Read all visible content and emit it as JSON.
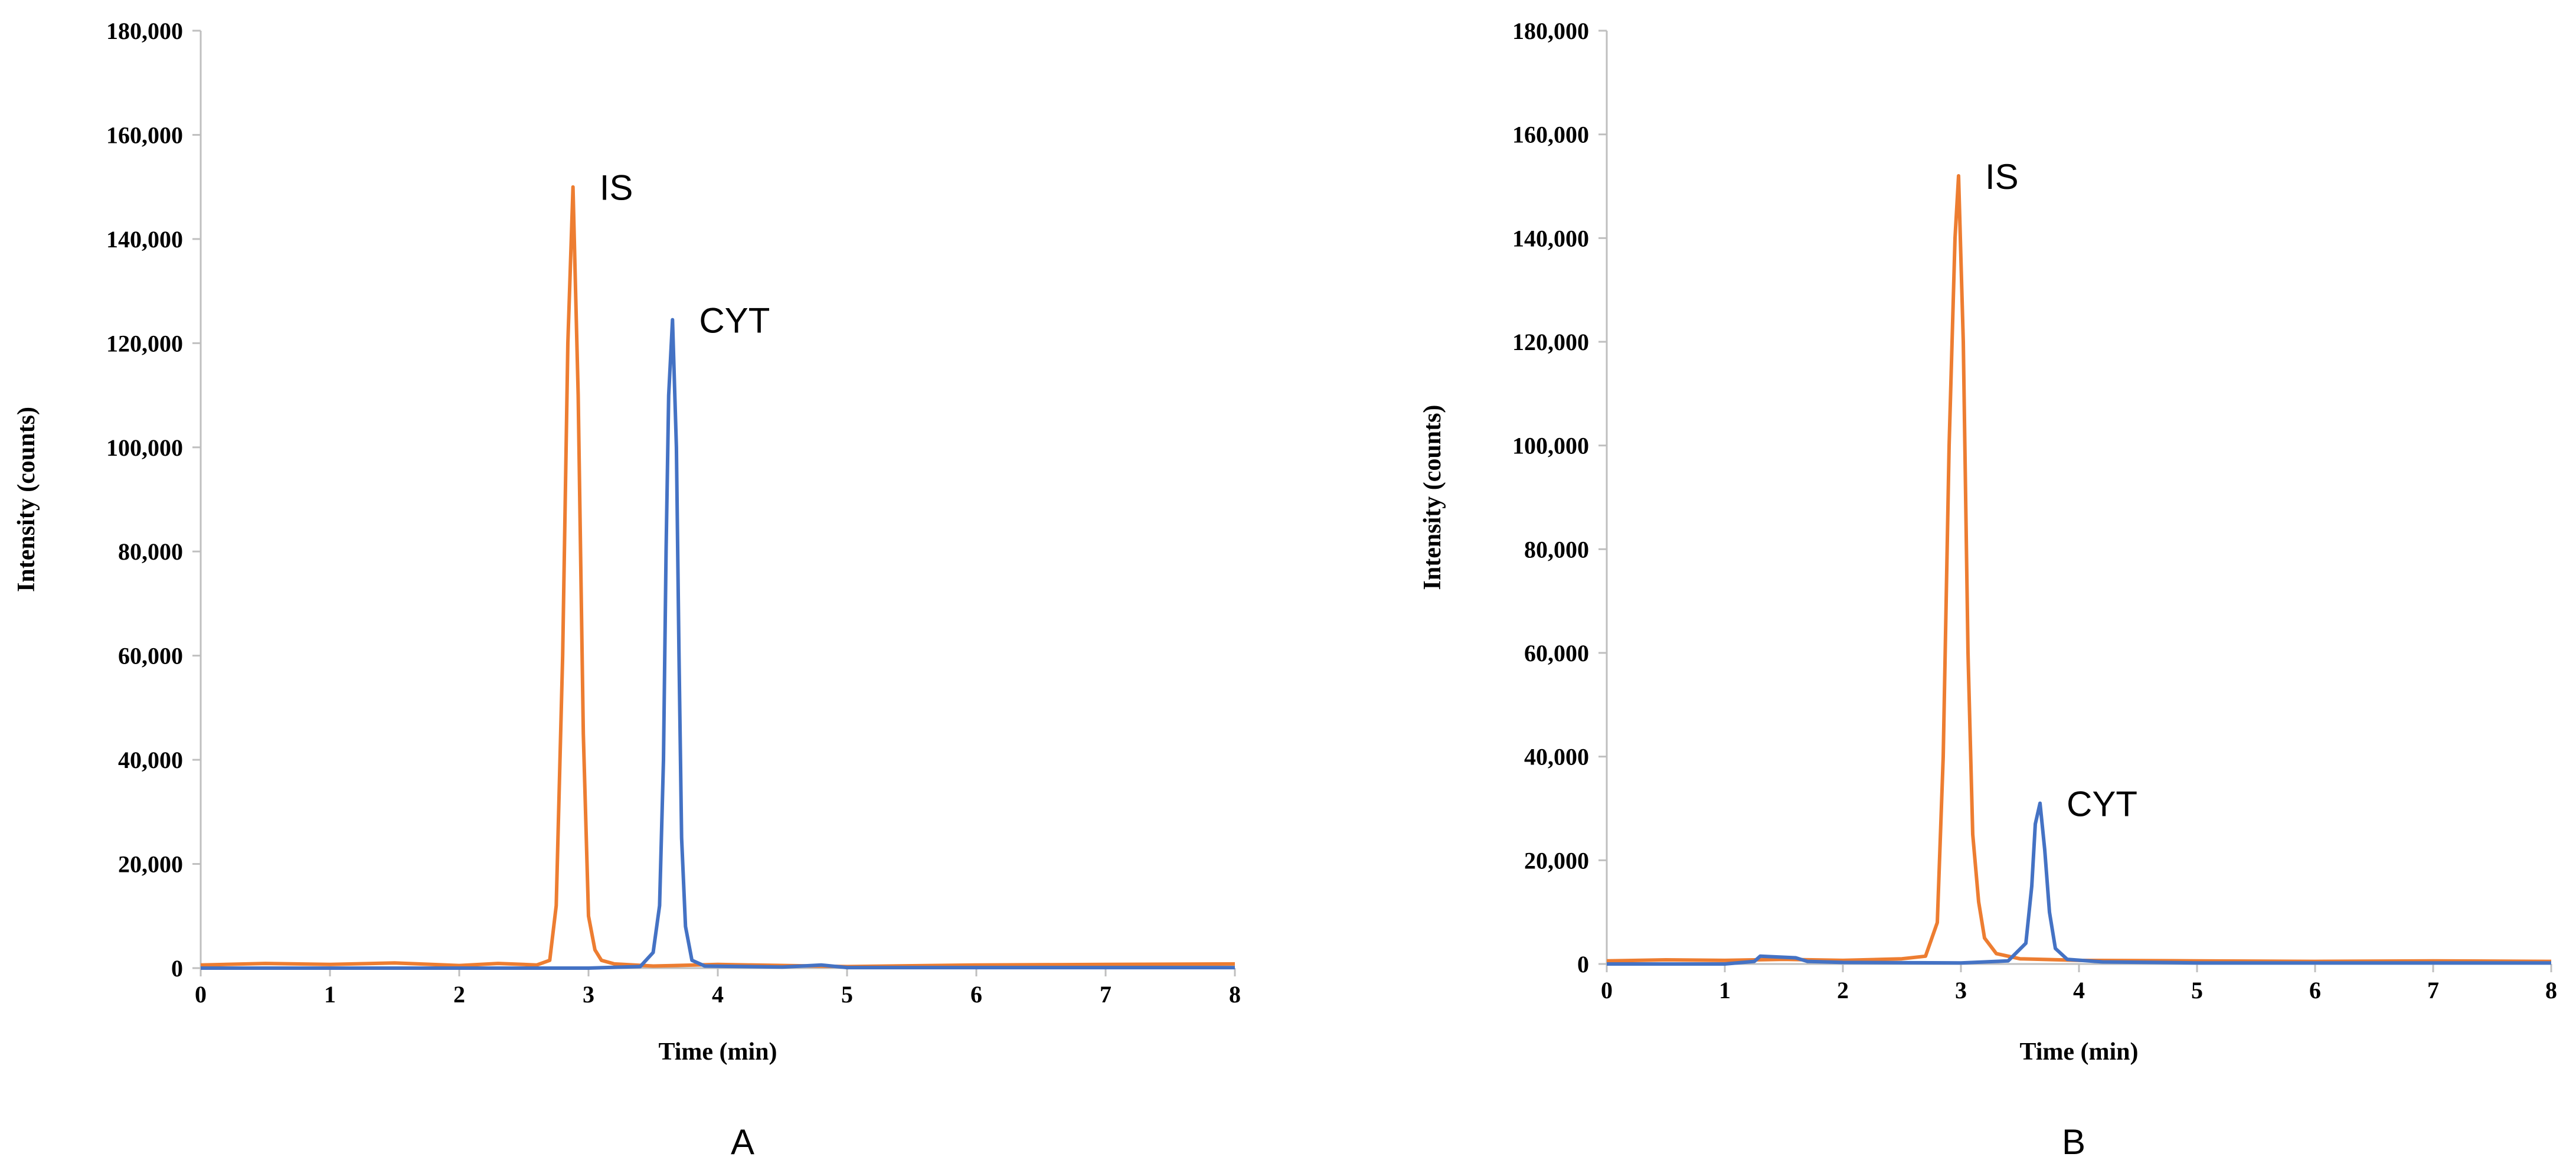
{
  "colors": {
    "IS": "#ED7D31",
    "CYT": "#4472C4",
    "axis": "#BFBFBF"
  },
  "chart_data": [
    {
      "type": "line",
      "panel_label": "A",
      "xlabel": "Time (min)",
      "ylabel": "Intensity (counts)",
      "xlim": [
        0,
        8
      ],
      "ylim": [
        0,
        180000
      ],
      "xticks": [
        0,
        1,
        2,
        3,
        4,
        5,
        6,
        7,
        8
      ],
      "yticks": [
        0,
        20000,
        40000,
        60000,
        80000,
        100000,
        120000,
        140000,
        160000,
        180000
      ],
      "ytick_labels": [
        "0",
        "20,000",
        "40,000",
        "60,000",
        "80,000",
        "100,000",
        "120,000",
        "140,000",
        "160,000",
        "180,000"
      ],
      "grid": false,
      "annotations": [
        {
          "text": "IS",
          "x": 2.88,
          "y": 150000
        },
        {
          "text": "CYT",
          "x": 3.65,
          "y": 124500
        }
      ],
      "series": [
        {
          "name": "IS",
          "color": "#ED7D31",
          "x": [
            0,
            0.5,
            1,
            1.5,
            2,
            2.3,
            2.6,
            2.7,
            2.75,
            2.8,
            2.84,
            2.88,
            2.92,
            2.96,
            3.0,
            3.05,
            3.1,
            3.2,
            3.5,
            4,
            5,
            6,
            7,
            8
          ],
          "y": [
            600,
            900,
            700,
            1000,
            500,
            900,
            600,
            1500,
            12000,
            60000,
            120000,
            150000,
            110000,
            45000,
            10000,
            3500,
            1500,
            800,
            400,
            700,
            300,
            600,
            700,
            800
          ]
        },
        {
          "name": "CYT",
          "color": "#4472C4",
          "x": [
            0,
            1,
            2,
            3,
            3.4,
            3.5,
            3.55,
            3.58,
            3.6,
            3.62,
            3.65,
            3.68,
            3.7,
            3.72,
            3.75,
            3.8,
            3.9,
            4.5,
            4.8,
            5,
            6,
            7,
            8
          ],
          "y": [
            0,
            0,
            0,
            0,
            300,
            3000,
            12000,
            40000,
            80000,
            110000,
            124500,
            100000,
            60000,
            25000,
            8000,
            1500,
            400,
            200,
            600,
            100,
            100,
            100,
            100
          ]
        }
      ]
    },
    {
      "type": "line",
      "panel_label": "B",
      "xlabel": "Time (min)",
      "ylabel": "Intensity (counts)",
      "xlim": [
        0,
        8
      ],
      "ylim": [
        0,
        180000
      ],
      "xticks": [
        0,
        1,
        2,
        3,
        4,
        5,
        6,
        7,
        8
      ],
      "yticks": [
        0,
        20000,
        40000,
        60000,
        80000,
        100000,
        120000,
        140000,
        160000,
        180000
      ],
      "ytick_labels": [
        "0",
        "20,000",
        "40,000",
        "60,000",
        "80,000",
        "100,000",
        "120,000",
        "140,000",
        "160,000",
        "180,000"
      ],
      "grid": false,
      "annotations": [
        {
          "text": "IS",
          "x": 2.98,
          "y": 152000
        },
        {
          "text": "CYT",
          "x": 3.67,
          "y": 31000
        }
      ],
      "series": [
        {
          "name": "IS",
          "color": "#ED7D31",
          "x": [
            0,
            0.5,
            1,
            1.5,
            2,
            2.5,
            2.7,
            2.8,
            2.85,
            2.9,
            2.95,
            2.98,
            3.02,
            3.06,
            3.1,
            3.15,
            3.2,
            3.3,
            3.5,
            4,
            5,
            6,
            7,
            8
          ],
          "y": [
            600,
            800,
            700,
            900,
            700,
            1000,
            1500,
            8000,
            40000,
            100000,
            140000,
            152000,
            120000,
            60000,
            25000,
            12000,
            5000,
            2000,
            1000,
            700,
            600,
            500,
            600,
            500
          ]
        },
        {
          "name": "CYT",
          "color": "#4472C4",
          "x": [
            0,
            1,
            1.25,
            1.3,
            1.6,
            1.7,
            2,
            3,
            3.4,
            3.55,
            3.6,
            3.63,
            3.67,
            3.71,
            3.75,
            3.8,
            3.9,
            4.2,
            5,
            6,
            7,
            8
          ],
          "y": [
            0,
            0,
            500,
            1500,
            1200,
            500,
            300,
            200,
            600,
            4000,
            15000,
            27000,
            31000,
            22000,
            10000,
            3000,
            900,
            400,
            200,
            200,
            200,
            200
          ]
        }
      ]
    }
  ]
}
